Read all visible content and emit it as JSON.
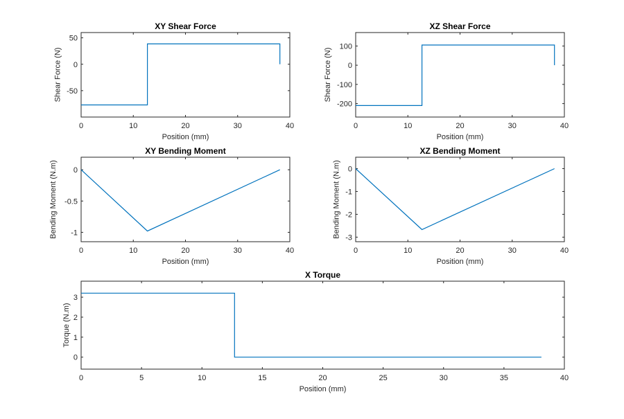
{
  "figure": {
    "background": "#ffffff",
    "line_color": "#0072bd",
    "axis_color": "#262626"
  },
  "chart_data": [
    {
      "type": "line",
      "title": "XY Shear Force",
      "xlabel": "Position (mm)",
      "ylabel": "Shear Force (N)",
      "xlim": [
        0,
        40
      ],
      "ylim": [
        -100,
        60
      ],
      "xticks": [
        0,
        10,
        20,
        30,
        40
      ],
      "yticks": [
        -50,
        0,
        50
      ],
      "series": [
        {
          "x": [
            0,
            12.7,
            12.7,
            38.1,
            38.1
          ],
          "y": [
            -77,
            -77,
            38.5,
            38.5,
            0
          ]
        }
      ]
    },
    {
      "type": "line",
      "title": "XZ Shear Force",
      "xlabel": "Position (mm)",
      "ylabel": "Shear Force (N)",
      "xlim": [
        0,
        40
      ],
      "ylim": [
        -270,
        170
      ],
      "xticks": [
        0,
        10,
        20,
        30,
        40
      ],
      "yticks": [
        -200,
        -100,
        0,
        100
      ],
      "series": [
        {
          "x": [
            0,
            12.7,
            12.7,
            38.1,
            38.1
          ],
          "y": [
            -210,
            -210,
            105,
            105,
            0
          ]
        }
      ]
    },
    {
      "type": "line",
      "title": "XY Bending Moment",
      "xlabel": "Position (mm)",
      "ylabel": "Bending Moment (N.m)",
      "xlim": [
        0,
        40
      ],
      "ylim": [
        -1.15,
        0.2
      ],
      "xticks": [
        0,
        10,
        20,
        30,
        40
      ],
      "yticks": [
        -1,
        -0.5,
        0
      ],
      "series": [
        {
          "x": [
            0,
            12.7,
            38.1
          ],
          "y": [
            0,
            -0.98,
            0
          ]
        }
      ]
    },
    {
      "type": "line",
      "title": "XZ Bending Moment",
      "xlabel": "Position (mm)",
      "ylabel": "Bending Moment (N.m)",
      "xlim": [
        0,
        40
      ],
      "ylim": [
        -3.2,
        0.5
      ],
      "xticks": [
        0,
        10,
        20,
        30,
        40
      ],
      "yticks": [
        -3,
        -2,
        -1,
        0
      ],
      "series": [
        {
          "x": [
            0,
            12.7,
            38.1
          ],
          "y": [
            0,
            -2.67,
            0
          ]
        }
      ]
    },
    {
      "type": "line",
      "title": "X Torque",
      "xlabel": "Position (mm)",
      "ylabel": "Torque (N.m)",
      "xlim": [
        0,
        40
      ],
      "ylim": [
        -0.6,
        3.8
      ],
      "xticks": [
        0,
        5,
        10,
        15,
        20,
        25,
        30,
        35,
        40
      ],
      "yticks": [
        0,
        1,
        2,
        3
      ],
      "series": [
        {
          "x": [
            0,
            12.7,
            12.7,
            38.1
          ],
          "y": [
            3.2,
            3.2,
            0,
            0
          ]
        }
      ]
    }
  ]
}
